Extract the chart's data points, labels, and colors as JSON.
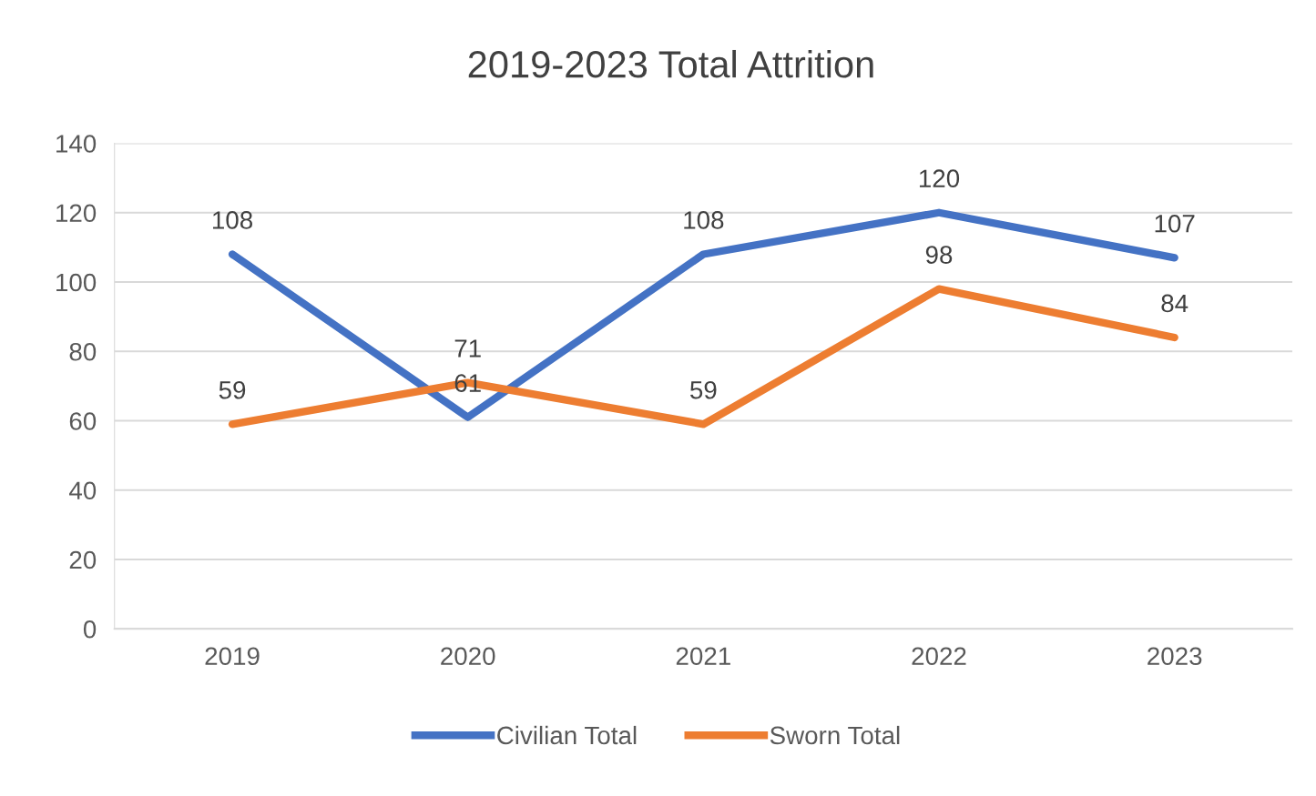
{
  "chart_data": {
    "type": "line",
    "title": "2019-2023 Total Attrition",
    "categories": [
      "2019",
      "2020",
      "2021",
      "2022",
      "2023"
    ],
    "series": [
      {
        "name": "Civilian Total",
        "color": "#4472c4",
        "values": [
          108,
          61,
          108,
          120,
          107
        ]
      },
      {
        "name": "Sworn Total",
        "color": "#ed7d31",
        "values": [
          59,
          71,
          59,
          98,
          84
        ]
      }
    ],
    "ylim": [
      0,
      140
    ],
    "yticks": [
      0,
      20,
      40,
      60,
      80,
      100,
      120,
      140
    ],
    "grid": "y",
    "legend": "bottom",
    "data_labels": true,
    "marker": "none",
    "line_style": "solid"
  }
}
